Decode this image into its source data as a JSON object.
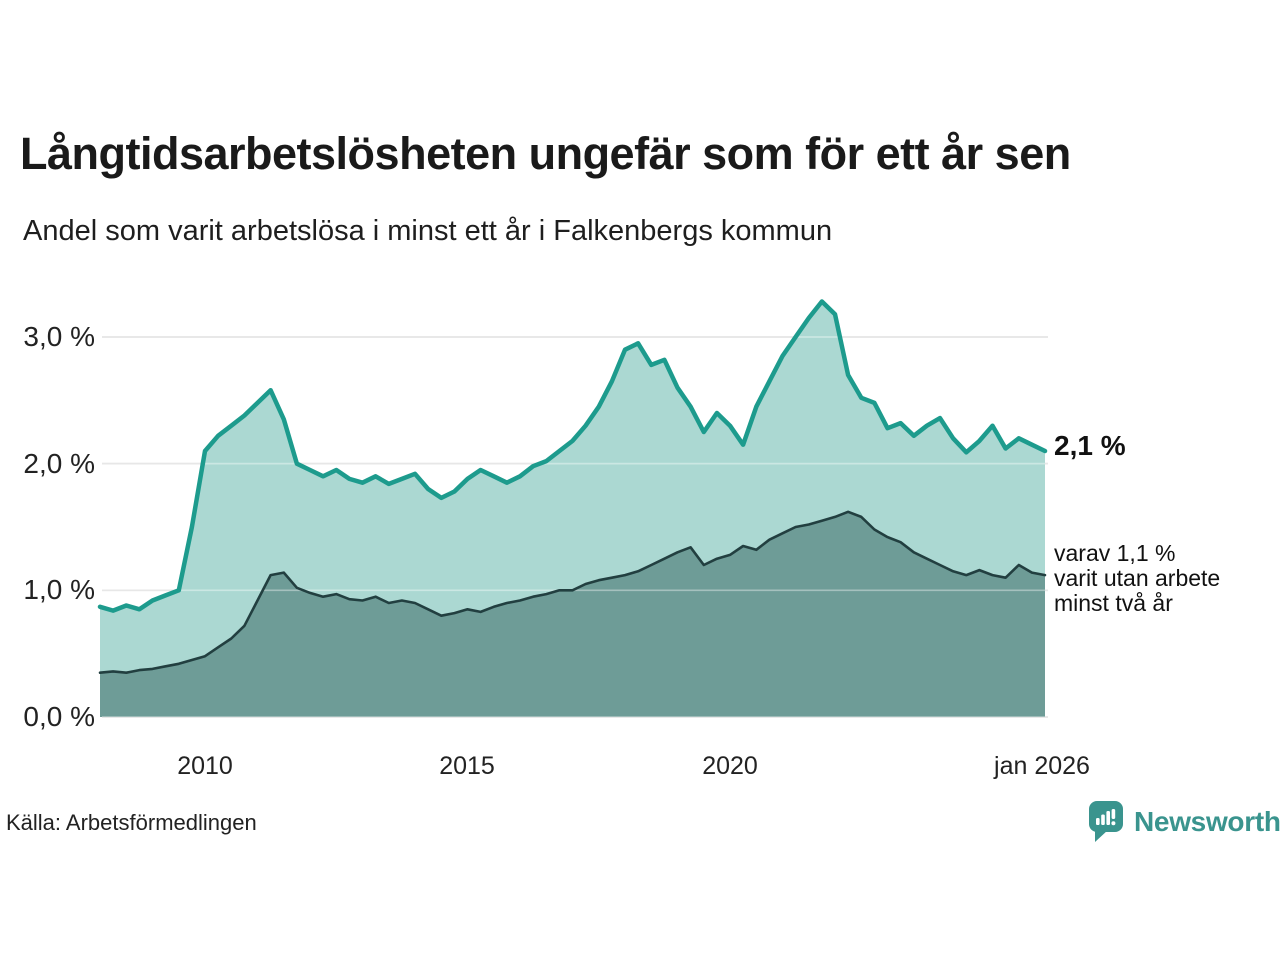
{
  "title": "Långtidsarbetslösheten ungefär som för ett år sen",
  "subtitle": "Andel som varit arbetslösa i minst ett år i Falkenbergs kommun",
  "source": "Källa: Arbetsförmedlingen",
  "brand": {
    "name": "Newsworthy",
    "logo_icon": "bar-chart-speech-bubble",
    "color": "#3a948e"
  },
  "annotations": {
    "latest_total": "2,1 %",
    "note": "varav 1,1 %\nvarit utan arbete\nminst två år"
  },
  "colors": {
    "background": "#ffffff",
    "total_line": "#1d9b8d",
    "total_fill": "#abd8d2",
    "two_year_line": "#223f40",
    "two_year_fill": "#6e9c97",
    "gridline": "#d9d9d9",
    "text": "#1a1a1a"
  },
  "chart_data": {
    "type": "area",
    "title": "Långtidsarbetslösheten ungefär som för ett år sen",
    "subtitle": "Andel som varit arbetslösa i minst ett år i Falkenbergs kommun",
    "x_unit": "year (monthly series, read at quarterly resolution)",
    "y_unit": "percent of workforce",
    "xlim": [
      2008,
      2026
    ],
    "ylim": [
      0,
      3.5
    ],
    "grid": "horizontal",
    "legend": "none (direct labels at line ends)",
    "yticks": [
      {
        "value": 0,
        "label": "0,0 %"
      },
      {
        "value": 1,
        "label": "1,0 %"
      },
      {
        "value": 2,
        "label": "2,0 %"
      },
      {
        "value": 3,
        "label": "3,0 %"
      }
    ],
    "xticks": [
      {
        "value": 2010,
        "label": "2010"
      },
      {
        "value": 2015,
        "label": "2015"
      },
      {
        "value": 2020,
        "label": "2020"
      },
      {
        "value": 2026,
        "label": "jan 2026"
      }
    ],
    "x": [
      2008,
      2008.25,
      2008.5,
      2008.75,
      2009,
      2009.25,
      2009.5,
      2009.75,
      2010,
      2010.25,
      2010.5,
      2010.75,
      2011,
      2011.25,
      2011.5,
      2011.75,
      2012,
      2012.25,
      2012.5,
      2012.75,
      2013,
      2013.25,
      2013.5,
      2013.75,
      2014,
      2014.25,
      2014.5,
      2014.75,
      2015,
      2015.25,
      2015.5,
      2015.75,
      2016,
      2016.25,
      2016.5,
      2016.75,
      2017,
      2017.25,
      2017.5,
      2017.75,
      2018,
      2018.25,
      2018.5,
      2018.75,
      2019,
      2019.25,
      2019.5,
      2019.75,
      2020,
      2020.25,
      2020.5,
      2020.75,
      2021,
      2021.25,
      2021.5,
      2021.75,
      2022,
      2022.25,
      2022.5,
      2022.75,
      2023,
      2023.25,
      2023.5,
      2023.75,
      2024,
      2024.25,
      2024.5,
      2024.75,
      2025,
      2025.25,
      2025.5,
      2025.75,
      2026
    ],
    "series": [
      {
        "name": "Arbetslösa minst ett år",
        "latest_label": "2,1 %",
        "line_color": "#1d9b8d",
        "fill_color": "#abd8d2",
        "line_width": 4.5,
        "values": [
          0.87,
          0.84,
          0.88,
          0.85,
          0.92,
          0.96,
          1.0,
          1.5,
          2.1,
          2.22,
          2.3,
          2.38,
          2.48,
          2.58,
          2.35,
          2.0,
          1.95,
          1.9,
          1.95,
          1.88,
          1.85,
          1.9,
          1.84,
          1.88,
          1.92,
          1.8,
          1.73,
          1.78,
          1.88,
          1.95,
          1.9,
          1.85,
          1.9,
          1.98,
          2.02,
          2.1,
          2.18,
          2.3,
          2.45,
          2.65,
          2.9,
          2.95,
          2.78,
          2.82,
          2.6,
          2.45,
          2.25,
          2.4,
          2.3,
          2.15,
          2.45,
          2.65,
          2.85,
          3.0,
          3.15,
          3.28,
          3.18,
          2.7,
          2.52,
          2.48,
          2.28,
          2.32,
          2.22,
          2.3,
          2.36,
          2.2,
          2.09,
          2.18,
          2.3,
          2.12,
          2.2,
          2.15,
          2.1
        ]
      },
      {
        "name": "Varav utan arbete minst två år",
        "latest_label": "1,1 %",
        "line_color": "#223f40",
        "fill_color": "#6e9c97",
        "line_width": 2.6,
        "values": [
          0.35,
          0.36,
          0.35,
          0.37,
          0.38,
          0.4,
          0.42,
          0.45,
          0.48,
          0.55,
          0.62,
          0.72,
          0.92,
          1.12,
          1.14,
          1.02,
          0.98,
          0.95,
          0.97,
          0.93,
          0.92,
          0.95,
          0.9,
          0.92,
          0.9,
          0.85,
          0.8,
          0.82,
          0.85,
          0.83,
          0.87,
          0.9,
          0.92,
          0.95,
          0.97,
          1.0,
          1.0,
          1.05,
          1.08,
          1.1,
          1.12,
          1.15,
          1.2,
          1.25,
          1.3,
          1.34,
          1.2,
          1.25,
          1.28,
          1.35,
          1.32,
          1.4,
          1.45,
          1.5,
          1.52,
          1.55,
          1.58,
          1.62,
          1.58,
          1.48,
          1.42,
          1.38,
          1.3,
          1.25,
          1.2,
          1.15,
          1.12,
          1.16,
          1.12,
          1.1,
          1.2,
          1.14,
          1.12
        ]
      }
    ]
  }
}
